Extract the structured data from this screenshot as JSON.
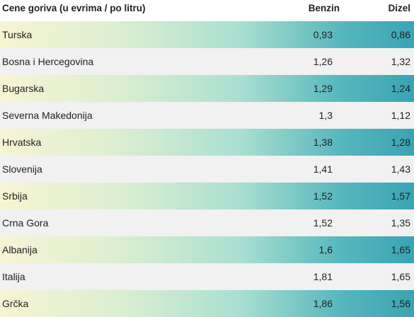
{
  "chart_data": {
    "type": "table",
    "columns": [
      "Cene goriva (u evrima / po litru)",
      "Benzin",
      "Dizel"
    ],
    "rows": [
      {
        "country": "Turska",
        "benzin": "0,93",
        "dizel": "0,86"
      },
      {
        "country": "Bosna i Hercegovina",
        "benzin": "1,26",
        "dizel": "1,32"
      },
      {
        "country": "Bugarska",
        "benzin": "1,29",
        "dizel": "1,24"
      },
      {
        "country": "Severna Makedonija",
        "benzin": "1,3",
        "dizel": "1,12"
      },
      {
        "country": "Hrvatska",
        "benzin": "1,38",
        "dizel": "1,28"
      },
      {
        "country": "Slovenija",
        "benzin": "1,41",
        "dizel": "1,43"
      },
      {
        "country": "Srbija",
        "benzin": "1,52",
        "dizel": "1,57"
      },
      {
        "country": "Crna Gora",
        "benzin": "1,52",
        "dizel": "1,35"
      },
      {
        "country": "Albanija",
        "benzin": "1,6",
        "dizel": "1,65"
      },
      {
        "country": "Italija",
        "benzin": "1,81",
        "dizel": "1,65"
      },
      {
        "country": "Grčka",
        "benzin": "1,86",
        "dizel": "1,56"
      }
    ]
  }
}
